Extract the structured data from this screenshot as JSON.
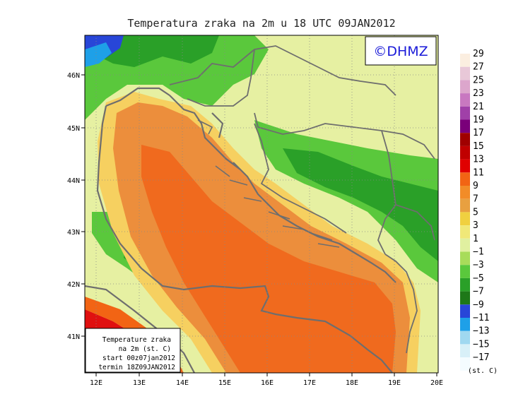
{
  "title": "Temperatura zraka na 2m u 18 UTC 09JAN2012",
  "credit": "©DHMZ",
  "info_box": {
    "line1": "Temperature zraka",
    "line2": "na 2m (st. C)",
    "line3": "start 00z07jan2012",
    "line4": "termin 18Z09JAN2012"
  },
  "axes": {
    "x_ticks": [
      "12E",
      "13E",
      "14E",
      "15E",
      "16E",
      "17E",
      "18E",
      "19E",
      "20E"
    ],
    "y_ticks": [
      "46N",
      "45N",
      "44N",
      "43N",
      "42N",
      "41N"
    ]
  },
  "legend": {
    "unit": "(st. C)",
    "labels": [
      "29",
      "27",
      "25",
      "23",
      "21",
      "19",
      "17",
      "15",
      "13",
      "11",
      "9",
      "7",
      "5",
      "3",
      "1",
      "−1",
      "−3",
      "−5",
      "−7",
      "−9",
      "−11",
      "−13",
      "−15",
      "−17"
    ],
    "colors": [
      "#fbeee0",
      "#e8c8d8",
      "#dca6cc",
      "#c878c0",
      "#a040a8",
      "#7a007a",
      "#a00000",
      "#c00000",
      "#e00000",
      "#f26414",
      "#f28c28",
      "#e8a040",
      "#f0d040",
      "#f0e878",
      "#e0f0a0",
      "#a8dc5a",
      "#5ac83c",
      "#2aa028",
      "#1e7818",
      "#2846d8",
      "#1ea0e8",
      "#a0d8f0",
      "#d8f0f8",
      "#f4fcff"
    ]
  },
  "colors": {
    "sea": "#f06a1e",
    "sea_outer": "#ec8e3c",
    "coast": "#f6d060",
    "land_light": "#e6f0a2",
    "land_green": "#5ac83c",
    "land_dark": "#2aa028",
    "cold_blue": "#2846d8",
    "warm_red": "#e01010",
    "border_line": "#6e6e6e"
  }
}
